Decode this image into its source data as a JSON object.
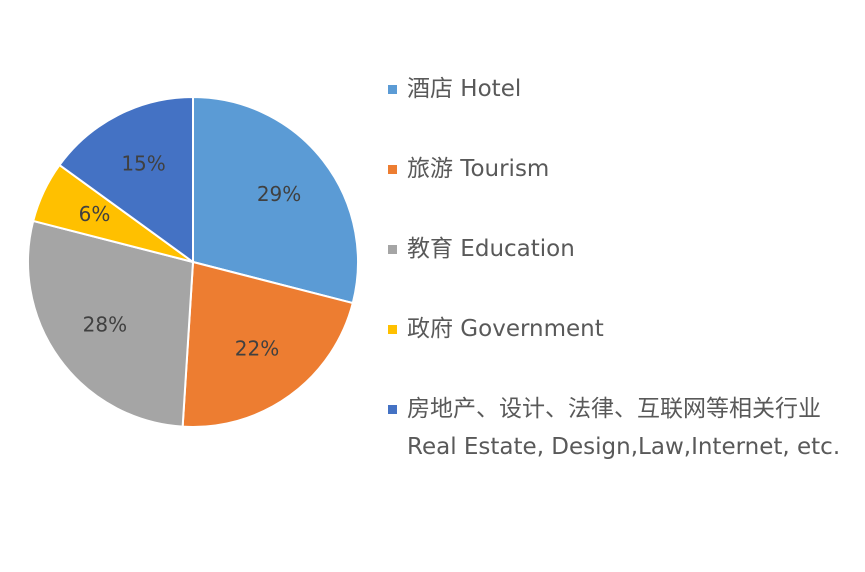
{
  "chart_data": {
    "type": "pie",
    "categories": [
      "酒店 Hotel",
      "旅游 Tourism",
      "教育 Education",
      "政府 Government",
      "房地产、设计、法律、互联网等相关行业\nReal Estate, Design,Law,Internet, etc."
    ],
    "values": [
      29,
      22,
      28,
      6,
      15
    ],
    "value_labels": [
      "29%",
      "22%",
      "28%",
      "6%",
      "15%"
    ],
    "colors": [
      "#5b9bd5",
      "#ed7d31",
      "#a5a5a5",
      "#ffc000",
      "#4472c4"
    ],
    "legend": "right"
  }
}
